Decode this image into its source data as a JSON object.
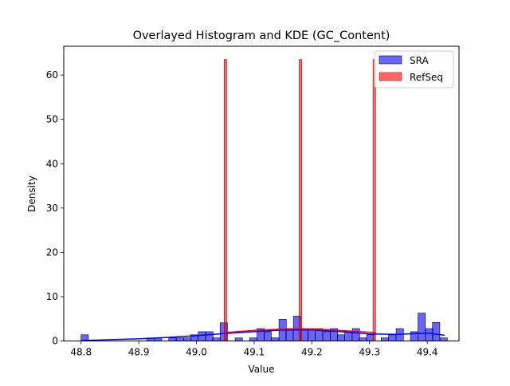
{
  "chart_data": {
    "type": "bar",
    "title": "Overlayed Histogram and KDE (GC_Content)",
    "xlabel": "Value",
    "ylabel": "Density",
    "xlim": [
      48.77,
      49.455
    ],
    "ylim": [
      0,
      66.5
    ],
    "xticks": [
      "48.8",
      "48.9",
      "49.0",
      "49.1",
      "49.2",
      "49.3",
      "49.4"
    ],
    "yticks": [
      "0",
      "10",
      "20",
      "30",
      "40",
      "50",
      "60"
    ],
    "legend": {
      "position": "top-right",
      "entries": [
        "SRA",
        "RefSeq"
      ]
    },
    "colors": {
      "sra": "#0000ff",
      "refseq": "#ff0000"
    },
    "series": [
      {
        "name": "SRA",
        "bin_width": 0.0127,
        "bins": [
          {
            "x": 48.8,
            "y": 1.4
          },
          {
            "x": 48.914,
            "y": 0.7
          },
          {
            "x": 48.927,
            "y": 0.7
          },
          {
            "x": 48.952,
            "y": 0.7
          },
          {
            "x": 48.965,
            "y": 0.7
          },
          {
            "x": 48.978,
            "y": 0.7
          },
          {
            "x": 48.99,
            "y": 1.4
          },
          {
            "x": 49.003,
            "y": 2.1
          },
          {
            "x": 49.016,
            "y": 2.1
          },
          {
            "x": 49.028,
            "y": 0.7
          },
          {
            "x": 49.041,
            "y": 4.1
          },
          {
            "x": 49.067,
            "y": 0.7
          },
          {
            "x": 49.092,
            "y": 0.7
          },
          {
            "x": 49.105,
            "y": 2.8
          },
          {
            "x": 49.117,
            "y": 2.1
          },
          {
            "x": 49.13,
            "y": 0.7
          },
          {
            "x": 49.143,
            "y": 4.9
          },
          {
            "x": 49.155,
            "y": 2.8
          },
          {
            "x": 49.168,
            "y": 5.6
          },
          {
            "x": 49.181,
            "y": 2.8
          },
          {
            "x": 49.193,
            "y": 2.8
          },
          {
            "x": 49.206,
            "y": 2.8
          },
          {
            "x": 49.219,
            "y": 2.1
          },
          {
            "x": 49.232,
            "y": 2.8
          },
          {
            "x": 49.244,
            "y": 1.4
          },
          {
            "x": 49.257,
            "y": 2.1
          },
          {
            "x": 49.27,
            "y": 2.8
          },
          {
            "x": 49.282,
            "y": 0.7
          },
          {
            "x": 49.295,
            "y": 1.4
          },
          {
            "x": 49.32,
            "y": 0.7
          },
          {
            "x": 49.333,
            "y": 1.4
          },
          {
            "x": 49.346,
            "y": 2.8
          },
          {
            "x": 49.371,
            "y": 2.1
          },
          {
            "x": 49.384,
            "y": 6.3
          },
          {
            "x": 49.397,
            "y": 2.8
          },
          {
            "x": 49.409,
            "y": 4.2
          },
          {
            "x": 49.422,
            "y": 0.7
          }
        ],
        "kde": [
          [
            48.8,
            0.1
          ],
          [
            48.85,
            0.3
          ],
          [
            48.9,
            0.5
          ],
          [
            48.95,
            0.8
          ],
          [
            49.0,
            1.2
          ],
          [
            49.05,
            1.7
          ],
          [
            49.1,
            2.1
          ],
          [
            49.15,
            2.5
          ],
          [
            49.2,
            2.5
          ],
          [
            49.25,
            2.1
          ],
          [
            49.3,
            1.6
          ],
          [
            49.35,
            1.5
          ],
          [
            49.4,
            1.8
          ],
          [
            49.43,
            1.3
          ]
        ]
      },
      {
        "name": "RefSeq",
        "bin_width": 0.0044,
        "bins": [
          {
            "x": 49.048,
            "y": 63.5
          },
          {
            "x": 49.178,
            "y": 63.5
          },
          {
            "x": 49.306,
            "y": 63.5
          }
        ],
        "kde": [
          [
            49.05,
            1.9
          ],
          [
            49.1,
            2.4
          ],
          [
            49.15,
            2.7
          ],
          [
            49.18,
            2.8
          ],
          [
            49.22,
            2.6
          ],
          [
            49.26,
            2.3
          ],
          [
            49.31,
            1.9
          ]
        ]
      }
    ]
  }
}
